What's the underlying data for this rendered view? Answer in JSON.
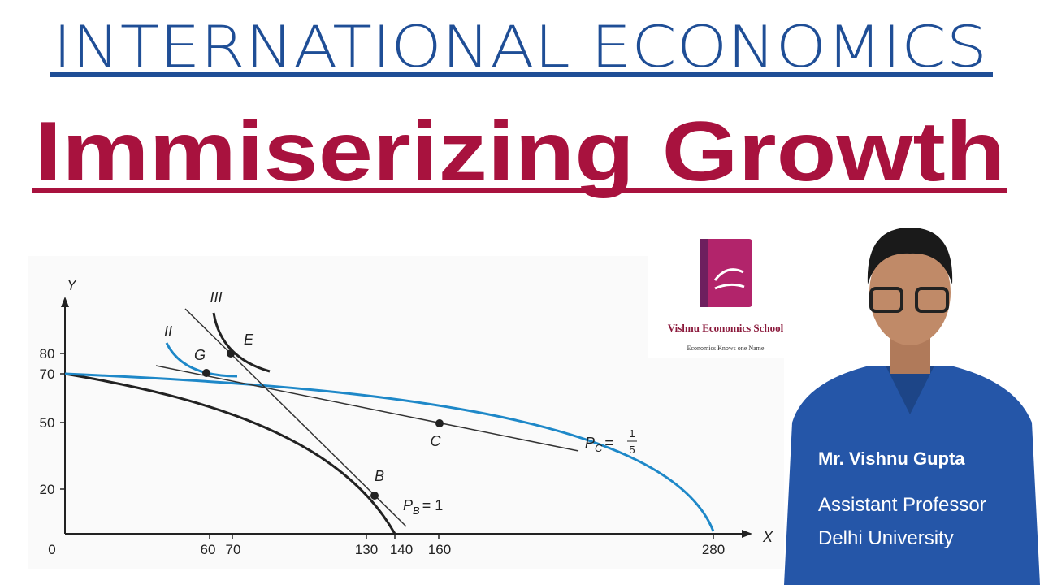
{
  "header": {
    "title": "INTERNATIONAL ECONOMICS",
    "subtitle": "Immiserizing Growth"
  },
  "diagram": {
    "y_axis_label": "Y",
    "x_axis_label": "X",
    "origin_label": "0",
    "y_ticks": [
      80,
      70,
      50,
      20
    ],
    "x_ticks": [
      60,
      70,
      130,
      140,
      160,
      280
    ],
    "curve_labels": [
      "II",
      "III"
    ],
    "points": [
      "G",
      "E",
      "C",
      "B"
    ],
    "price_lines": [
      {
        "symbol": "P",
        "subscript": "B",
        "equals": "= 1"
      },
      {
        "symbol": "P",
        "subscript": "C",
        "equals": "=",
        "numerator": "1",
        "denominator": "5"
      }
    ]
  },
  "logo": {
    "name": "Vishnu Economics School",
    "tagline": "Economics Knows one Name"
  },
  "presenter": {
    "name": "Mr. Vishnu Gupta",
    "role": "Assistant Professor",
    "affiliation": "Delhi University"
  }
}
